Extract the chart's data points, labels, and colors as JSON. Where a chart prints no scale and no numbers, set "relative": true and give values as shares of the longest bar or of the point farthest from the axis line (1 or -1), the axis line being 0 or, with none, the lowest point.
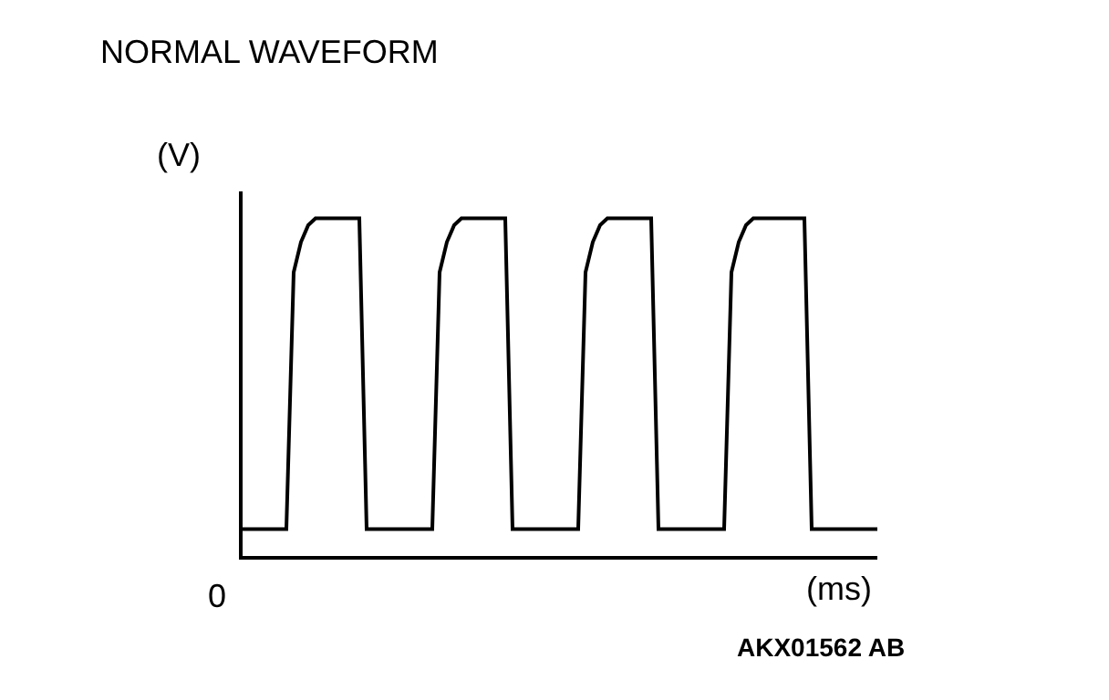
{
  "chart_data": {
    "type": "line",
    "title": "NORMAL WAVEFORM",
    "xlabel": "(ms)",
    "ylabel": "(V)",
    "relative": true,
    "categories": [
      null,
      null,
      null,
      null,
      null,
      null,
      null,
      null,
      null,
      null,
      null,
      null,
      null,
      null,
      null,
      null,
      null,
      null,
      null,
      null,
      null,
      null,
      null,
      null,
      null,
      null,
      null,
      null,
      null,
      null,
      null,
      null,
      null,
      null,
      null,
      null,
      null,
      null,
      null,
      null,
      null,
      null,
      null,
      null,
      null,
      null,
      null,
      null,
      null,
      null,
      null,
      null,
      null,
      null,
      null,
      null,
      null,
      null,
      null,
      null,
      null,
      null,
      null,
      null,
      null,
      null,
      null,
      null,
      null,
      null,
      null,
      null,
      null,
      null,
      null,
      null,
      null,
      null,
      null,
      null,
      null,
      null,
      null,
      null,
      null,
      null,
      null,
      null
    ],
    "series": [
      {
        "color": "#000000",
        "values": [
          0.08,
          0.08,
          0.08,
          0.08,
          0.08,
          0.08,
          0.08,
          0.84,
          0.93,
          0.98,
          1,
          1,
          1,
          1,
          1,
          1,
          1,
          0.08,
          0.08,
          0.08,
          0.08,
          0.08,
          0.08,
          0.08,
          0.08,
          0.08,
          0.08,
          0.84,
          0.93,
          0.98,
          1,
          1,
          1,
          1,
          1,
          1,
          1,
          0.08,
          0.08,
          0.08,
          0.08,
          0.08,
          0.08,
          0.08,
          0.08,
          0.08,
          0.08,
          0.84,
          0.93,
          0.98,
          1,
          1,
          1,
          1,
          1,
          1,
          1,
          0.08,
          0.08,
          0.08,
          0.08,
          0.08,
          0.08,
          0.08,
          0.08,
          0.08,
          0.08,
          0.84,
          0.93,
          0.98,
          1,
          1,
          1,
          1,
          1,
          1,
          1,
          1,
          0.08,
          0.08,
          0.08,
          0.08,
          0.08,
          0.08,
          0.08,
          0.08,
          0.08,
          0.08
        ]
      }
    ],
    "annotations": [
      "0",
      "AKX01562 AB"
    ],
    "legend": false,
    "marker": "none",
    "line_style": "solid"
  }
}
